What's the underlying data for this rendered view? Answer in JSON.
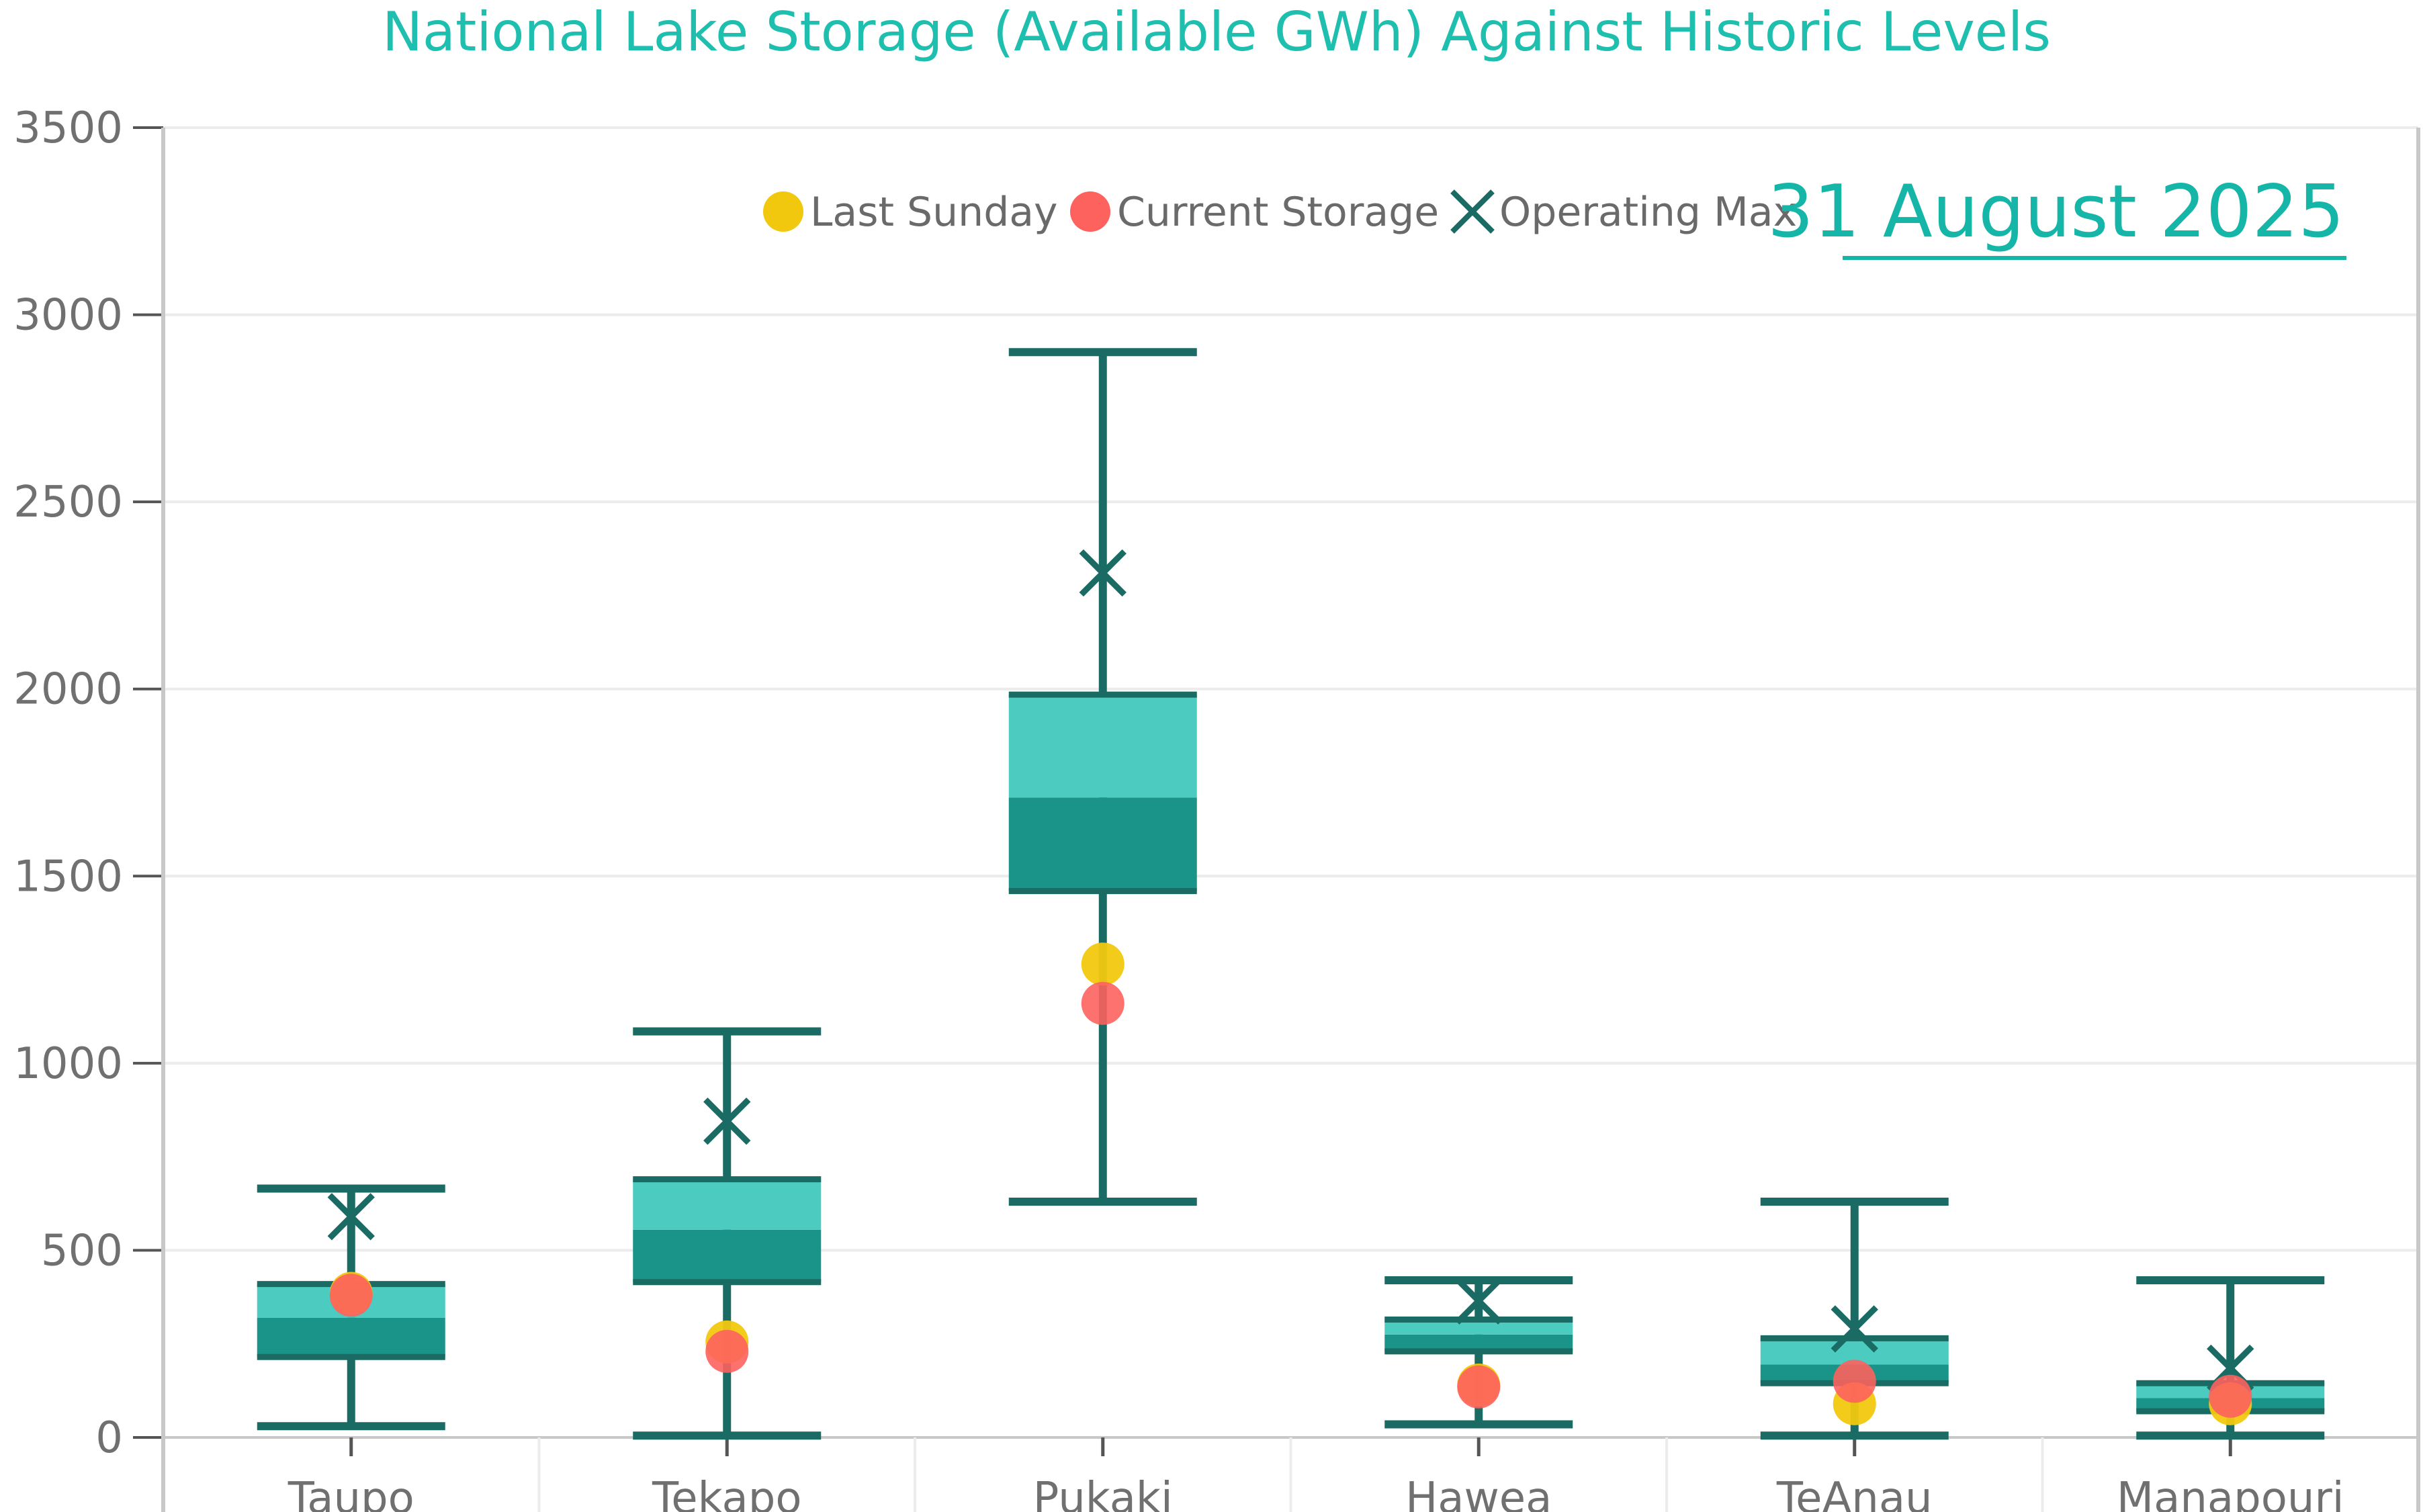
{
  "chart_data": {
    "type": "box",
    "title": "National Lake Storage (Available GWh) Against Historic Levels",
    "date": "31 August 2025",
    "xlabel": "",
    "ylabel": "",
    "ylim": [
      0,
      3500
    ],
    "yticks": [
      0,
      500,
      1000,
      1500,
      2000,
      2500,
      3000,
      3500
    ],
    "grid": true,
    "legend_position": "top-right",
    "categories": [
      "Taupo",
      "Tekapo",
      "Pukaki",
      "Hawea",
      "TeAnau",
      "Manapouri"
    ],
    "boxes": [
      {
        "lake": "Taupo",
        "min": 30,
        "q1": 215,
        "median": 320,
        "q3": 410,
        "max": 665
      },
      {
        "lake": "Tekapo",
        "min": 5,
        "q1": 415,
        "median": 555,
        "q3": 690,
        "max": 1085
      },
      {
        "lake": "Pukaki",
        "min": 630,
        "q1": 1460,
        "median": 1710,
        "q3": 1985,
        "max": 2900
      },
      {
        "lake": "Hawea",
        "min": 35,
        "q1": 230,
        "median": 275,
        "q3": 315,
        "max": 420
      },
      {
        "lake": "TeAnau",
        "min": 5,
        "q1": 145,
        "median": 195,
        "q3": 265,
        "max": 630
      },
      {
        "lake": "Manapouri",
        "min": 5,
        "q1": 70,
        "median": 105,
        "q3": 145,
        "max": 420
      }
    ],
    "series": [
      {
        "name": "Last Sunday",
        "marker": "circle",
        "color": "#f2c80f",
        "values": [
          385,
          255,
          1265,
          140,
          90,
          90
        ]
      },
      {
        "name": "Current Storage",
        "marker": "circle",
        "color": "#fd625e",
        "values": [
          380,
          230,
          1160,
          135,
          150,
          110
        ]
      },
      {
        "name": "Operating Max",
        "marker": "x",
        "color": "#1a6b63",
        "values": [
          590,
          845,
          2310,
          365,
          290,
          185
        ]
      }
    ],
    "colors": {
      "title": "#1fbfb0",
      "box_upper": "#4ccbc0",
      "box_lower": "#1a9488",
      "whisker": "#1a6b63",
      "axis": "#c8c8c8",
      "grid": "#ececec",
      "tick_text": "#707070",
      "date": "#15b6a8"
    }
  }
}
